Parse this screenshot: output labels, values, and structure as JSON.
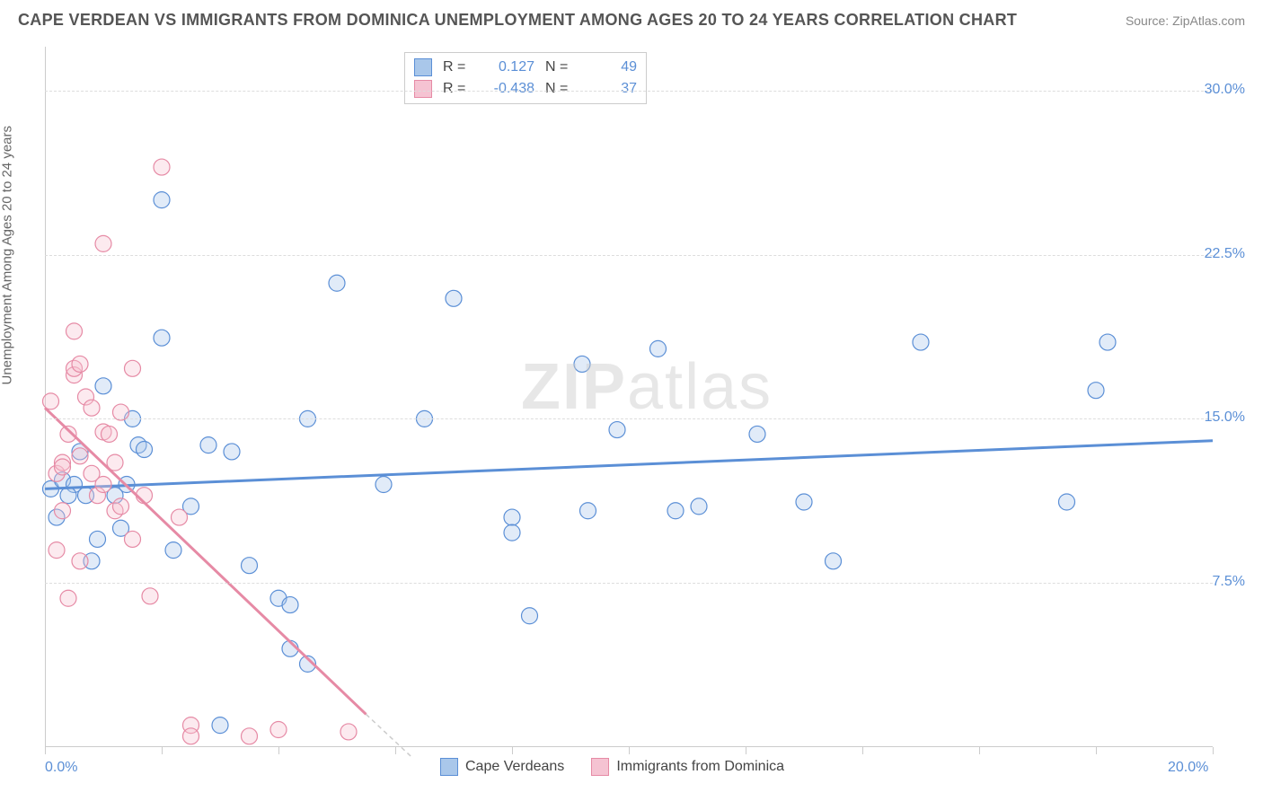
{
  "title": "CAPE VERDEAN VS IMMIGRANTS FROM DOMINICA UNEMPLOYMENT AMONG AGES 20 TO 24 YEARS CORRELATION CHART",
  "source": "Source: ZipAtlas.com",
  "ylabel": "Unemployment Among Ages 20 to 24 years",
  "watermark_bold": "ZIP",
  "watermark_rest": "atlas",
  "chart": {
    "type": "scatter",
    "xlim": [
      0,
      20
    ],
    "ylim": [
      0,
      32
    ],
    "xtick_positions": [
      0,
      2,
      4,
      6,
      8,
      10,
      12,
      14,
      16,
      18,
      20
    ],
    "xtick_labels_shown": {
      "0": "0.0%",
      "20": "20.0%"
    },
    "ytick_positions": [
      7.5,
      15.0,
      22.5,
      30.0
    ],
    "ytick_labels": [
      "7.5%",
      "15.0%",
      "22.5%",
      "30.0%"
    ],
    "gridline_color": "#dddddd",
    "axis_color": "#cccccc",
    "background_color": "#ffffff",
    "marker_radius": 9,
    "marker_stroke_width": 1.2,
    "marker_fill_opacity": 0.35,
    "trend_line_width": 3,
    "trend_dash_color": "#cccccc",
    "series": [
      {
        "name": "Cape Verdeans",
        "color_stroke": "#5b8fd6",
        "color_fill": "#a9c7ea",
        "R": 0.127,
        "N": 49,
        "trend": {
          "x1": 0,
          "y1": 11.8,
          "x2": 20,
          "y2": 14.0
        },
        "points": [
          [
            0.1,
            11.8
          ],
          [
            0.2,
            10.5
          ],
          [
            0.3,
            12.2
          ],
          [
            0.5,
            12.0
          ],
          [
            0.4,
            11.5
          ],
          [
            0.8,
            8.5
          ],
          [
            1.0,
            16.5
          ],
          [
            0.6,
            13.5
          ],
          [
            0.7,
            11.5
          ],
          [
            1.5,
            15.0
          ],
          [
            1.6,
            13.8
          ],
          [
            1.7,
            13.6
          ],
          [
            1.2,
            11.5
          ],
          [
            1.4,
            12.0
          ],
          [
            2.0,
            25.0
          ],
          [
            2.0,
            18.7
          ],
          [
            2.2,
            9.0
          ],
          [
            2.5,
            11.0
          ],
          [
            2.8,
            13.8
          ],
          [
            3.5,
            8.3
          ],
          [
            3.2,
            13.5
          ],
          [
            4.0,
            6.8
          ],
          [
            4.2,
            6.5
          ],
          [
            4.2,
            4.5
          ],
          [
            4.5,
            3.8
          ],
          [
            4.5,
            15.0
          ],
          [
            5.0,
            21.2
          ],
          [
            5.8,
            12.0
          ],
          [
            6.5,
            15.0
          ],
          [
            7.0,
            20.5
          ],
          [
            8.0,
            10.5
          ],
          [
            8.0,
            9.8
          ],
          [
            8.3,
            6.0
          ],
          [
            9.2,
            17.5
          ],
          [
            9.8,
            14.5
          ],
          [
            9.3,
            10.8
          ],
          [
            10.5,
            18.2
          ],
          [
            10.8,
            10.8
          ],
          [
            11.2,
            11.0
          ],
          [
            12.2,
            14.3
          ],
          [
            13.0,
            11.2
          ],
          [
            13.5,
            8.5
          ],
          [
            15.0,
            18.5
          ],
          [
            17.5,
            11.2
          ],
          [
            18.2,
            18.5
          ],
          [
            18.0,
            16.3
          ],
          [
            3.0,
            1.0
          ],
          [
            1.3,
            10.0
          ],
          [
            0.9,
            9.5
          ]
        ]
      },
      {
        "name": "Immigrants from Dominica",
        "color_stroke": "#e68aa5",
        "color_fill": "#f5c3d2",
        "R": -0.438,
        "N": 37,
        "trend": {
          "x1": 0,
          "y1": 15.5,
          "x2": 5.5,
          "y2": 1.5
        },
        "trend_dash_extend": {
          "x1": 5.5,
          "y1": 1.5,
          "x2": 6.3,
          "y2": -0.5
        },
        "points": [
          [
            0.1,
            15.8
          ],
          [
            0.2,
            12.5
          ],
          [
            0.3,
            13.0
          ],
          [
            0.3,
            12.8
          ],
          [
            0.4,
            14.3
          ],
          [
            0.5,
            17.0
          ],
          [
            0.5,
            17.3
          ],
          [
            0.5,
            19.0
          ],
          [
            0.6,
            17.5
          ],
          [
            0.7,
            16.0
          ],
          [
            0.8,
            15.5
          ],
          [
            0.8,
            12.5
          ],
          [
            0.9,
            11.5
          ],
          [
            0.6,
            8.5
          ],
          [
            0.4,
            6.8
          ],
          [
            1.0,
            23.0
          ],
          [
            1.0,
            14.4
          ],
          [
            1.1,
            14.3
          ],
          [
            1.2,
            13.0
          ],
          [
            1.2,
            10.8
          ],
          [
            1.5,
            17.3
          ],
          [
            1.3,
            11.0
          ],
          [
            1.3,
            15.3
          ],
          [
            1.5,
            9.5
          ],
          [
            1.8,
            6.9
          ],
          [
            2.0,
            26.5
          ],
          [
            2.3,
            10.5
          ],
          [
            2.5,
            1.0
          ],
          [
            2.5,
            0.5
          ],
          [
            3.5,
            0.5
          ],
          [
            4.0,
            0.8
          ],
          [
            5.2,
            0.7
          ],
          [
            0.2,
            9.0
          ],
          [
            0.3,
            10.8
          ],
          [
            0.6,
            13.3
          ],
          [
            1.0,
            12.0
          ],
          [
            1.7,
            11.5
          ]
        ]
      }
    ]
  },
  "legend_top": [
    {
      "swatch_fill": "#a9c7ea",
      "swatch_stroke": "#5b8fd6",
      "R_label": "R =",
      "R_val": "0.127",
      "N_label": "N =",
      "N_val": "49"
    },
    {
      "swatch_fill": "#f5c3d2",
      "swatch_stroke": "#e68aa5",
      "R_label": "R =",
      "R_val": "-0.438",
      "N_label": "N =",
      "N_val": "37"
    }
  ],
  "legend_bottom": [
    {
      "swatch_fill": "#a9c7ea",
      "swatch_stroke": "#5b8fd6",
      "label": "Cape Verdeans"
    },
    {
      "swatch_fill": "#f5c3d2",
      "swatch_stroke": "#e68aa5",
      "label": "Immigrants from Dominica"
    }
  ]
}
